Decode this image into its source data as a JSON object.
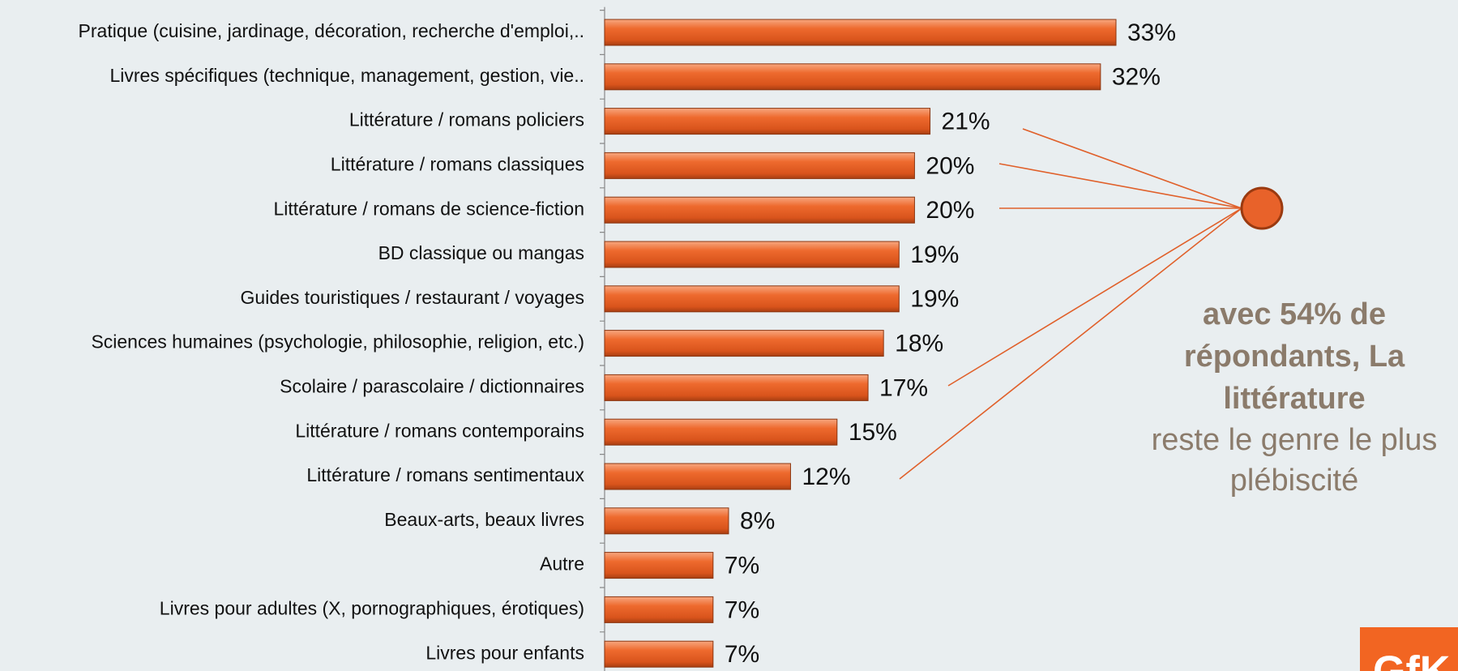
{
  "chart_data": {
    "type": "barh",
    "categories": [
      "Pratique (cuisine, jardinage, décoration, recherche d'emploi,..",
      "Livres spécifiques (technique, management, gestion, vie..",
      "Littérature / romans policiers",
      "Littérature / romans classiques",
      "Littérature / romans de science-fiction",
      "BD classique ou mangas",
      "Guides touristiques / restaurant / voyages",
      "Sciences humaines (psychologie, philosophie, religion, etc.)",
      "Scolaire / parascolaire / dictionnaires",
      "Littérature / romans contemporains",
      "Littérature / romans sentimentaux",
      "Beaux-arts, beaux livres",
      "Autre",
      "Livres pour adultes (X, pornographiques, érotiques)",
      "Livres pour enfants"
    ],
    "values": [
      33,
      32,
      21,
      20,
      20,
      19,
      19,
      18,
      17,
      15,
      12,
      8,
      7,
      7,
      7
    ],
    "value_labels": [
      "33%",
      "32%",
      "21%",
      "20%",
      "20%",
      "19%",
      "19%",
      "18%",
      "17%",
      "15%",
      "12%",
      "8%",
      "7%",
      "7%",
      "7%"
    ],
    "color": "#e8622a",
    "xlim": [
      0,
      33
    ],
    "annotation_bold": [
      "avec 54% de",
      "répondants, La",
      "littérature"
    ],
    "annotation": [
      "reste le genre le plus",
      "plébiscité"
    ],
    "logo": "GfK"
  }
}
